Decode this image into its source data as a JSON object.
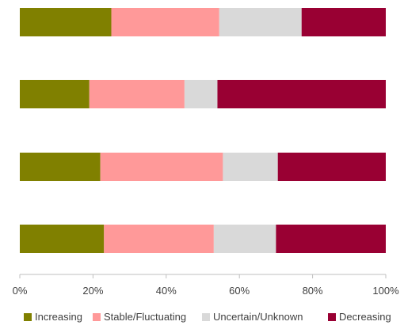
{
  "chart_data": {
    "type": "bar",
    "orientation": "horizontal",
    "stacked": "percent",
    "categories": [
      "",
      "",
      "",
      ""
    ],
    "series": [
      {
        "name": "Increasing",
        "color": "#808000",
        "values": [
          25,
          19,
          22,
          23
        ]
      },
      {
        "name": "Stable/Fluctuating",
        "color": "#FF9999",
        "values": [
          29.5,
          26,
          33.5,
          30
        ]
      },
      {
        "name": "Uncertain/Unknown",
        "color": "#D9D9D9",
        "values": [
          22.5,
          9,
          15,
          17
        ]
      },
      {
        "name": "Decreasing",
        "color": "#990033",
        "values": [
          23,
          46,
          29.5,
          30
        ]
      }
    ],
    "xlim": [
      0,
      100
    ],
    "x_ticks": [
      "0%",
      "20%",
      "40%",
      "60%",
      "80%",
      "100%"
    ],
    "grid": false,
    "legend_position": "bottom",
    "title": "",
    "xlabel": "",
    "ylabel": ""
  }
}
